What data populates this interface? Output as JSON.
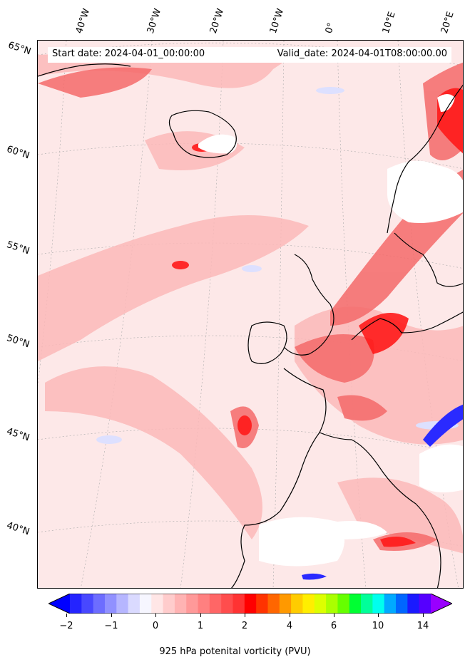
{
  "header": {
    "start_date": "Start date: 2024-04-01_00:00:00",
    "valid_date": "Valid_date: 2024-04-01T08:00:00.00"
  },
  "map": {
    "longitude_labels": [
      "40°W",
      "30°W",
      "20°W",
      "10°W",
      "0°",
      "10°E",
      "20°E"
    ],
    "latitude_labels": [
      "65°N",
      "60°N",
      "55°N",
      "50°N",
      "45°N",
      "40°N"
    ],
    "colors": {
      "background": "#fde8e8",
      "light_red": "#fbb8b8",
      "medium_red": "#f46a6a",
      "strong_red": "#ff1a1a",
      "blue": "#2a2aff",
      "light_blue": "#dde0ff",
      "no_data": "#ffffff"
    }
  },
  "colorbar": {
    "label": "925 hPa potenital vorticity (PVU)",
    "ticks": [
      "−2",
      "−1",
      "0",
      "1",
      "2",
      "4",
      "6",
      "10",
      "14"
    ],
    "colors": [
      "#0000ff",
      "#2424ff",
      "#4848ff",
      "#6d6dff",
      "#9191ff",
      "#b6b6ff",
      "#dadaff",
      "#f6f6ff",
      "#ffe6e6",
      "#ffcccc",
      "#ffb3b3",
      "#ff9999",
      "#ff8080",
      "#ff6666",
      "#ff4d4d",
      "#ff3333",
      "#ff0000",
      "#ff3300",
      "#ff6600",
      "#ff9900",
      "#ffcc00",
      "#ffee00",
      "#ddff00",
      "#aaff00",
      "#66ff00",
      "#00ff33",
      "#00ff99",
      "#00ffee",
      "#00aaff",
      "#0066ff",
      "#1a1aff",
      "#5500ff",
      "#9900ff"
    ]
  }
}
